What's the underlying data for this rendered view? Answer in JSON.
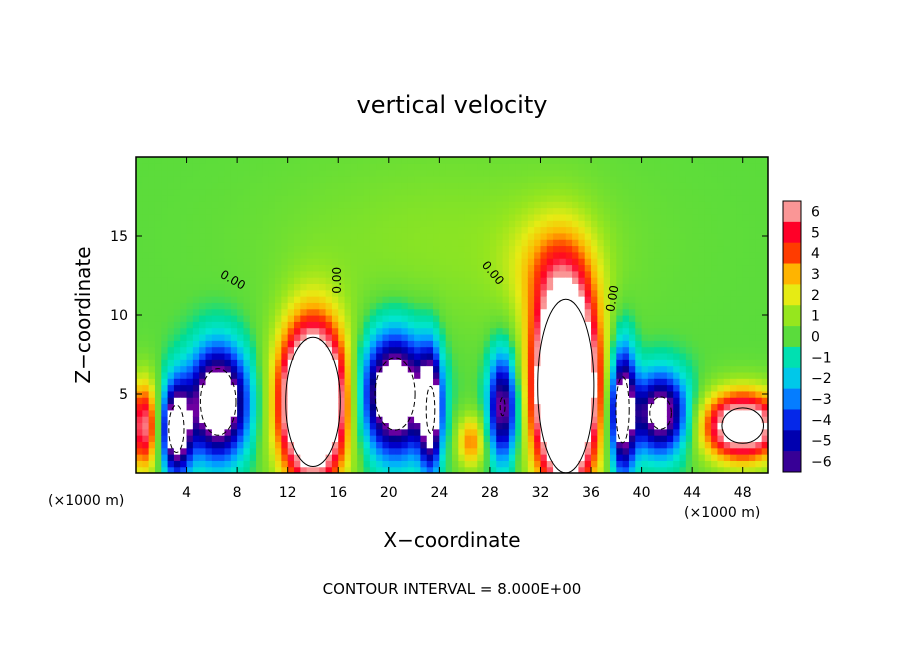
{
  "chart_data": {
    "type": "heatmap",
    "title": "vertical velocity",
    "xlabel": "X−coordinate",
    "ylabel": "Z−coordinate",
    "x_unit_left": "(×1000 m)",
    "x_unit_right": "(×1000 m)",
    "xlim": [
      0,
      50
    ],
    "ylim": [
      0,
      20
    ],
    "xticks": [
      4,
      8,
      12,
      16,
      20,
      24,
      28,
      32,
      36,
      40,
      44,
      48
    ],
    "yticks": [
      5,
      10,
      15
    ],
    "footnote": "CONTOUR INTERVAL = 8.000E+00",
    "contour_label": "0.00",
    "colorbar": {
      "ticks": [
        6,
        5,
        4,
        3,
        2,
        1,
        0,
        -1,
        -2,
        -3,
        -4,
        -5,
        -6
      ],
      "tick_labels": [
        "6",
        "5",
        "4",
        "3",
        "2",
        "1",
        "0",
        "−1",
        "−2",
        "−3",
        "−4",
        "−5",
        "−6"
      ]
    },
    "features": [
      {
        "x": 14,
        "z": 4.5,
        "sx": 1.8,
        "sz": 3.4,
        "w": 14
      },
      {
        "x": 34,
        "z": 5.5,
        "sx": 1.7,
        "sz": 4.2,
        "w": 16
      },
      {
        "x": 26.5,
        "z": 2.0,
        "sx": 0.8,
        "sz": 1.2,
        "w": 3.5
      },
      {
        "x": 48,
        "z": 3.0,
        "sx": 2.2,
        "sz": 1.5,
        "w": 9
      },
      {
        "x": 0.6,
        "z": 3.0,
        "sx": 0.8,
        "sz": 2.0,
        "w": 6
      },
      {
        "x": 3.2,
        "z": 2.8,
        "sx": 0.8,
        "sz": 2.0,
        "w": -9
      },
      {
        "x": 6.5,
        "z": 4.5,
        "sx": 1.6,
        "sz": 2.4,
        "w": -10
      },
      {
        "x": 20.5,
        "z": 5.0,
        "sx": 1.8,
        "sz": 2.6,
        "w": -10
      },
      {
        "x": 23.3,
        "z": 4.0,
        "sx": 0.6,
        "sz": 2.6,
        "w": -8
      },
      {
        "x": 29.0,
        "z": 4.2,
        "sx": 0.8,
        "sz": 2.4,
        "w": -7
      },
      {
        "x": 38.5,
        "z": 4.0,
        "sx": 0.7,
        "sz": 2.8,
        "w": -9
      },
      {
        "x": 41.5,
        "z": 3.8,
        "sx": 1.5,
        "sz": 1.8,
        "w": -8
      },
      {
        "x": 25.0,
        "z": 14.5,
        "sx": 10.0,
        "sz": 4.0,
        "w": 0.8
      },
      {
        "x": 33.0,
        "z": 13.0,
        "sx": 2.5,
        "sz": 2.5,
        "w": 2.2
      }
    ]
  }
}
